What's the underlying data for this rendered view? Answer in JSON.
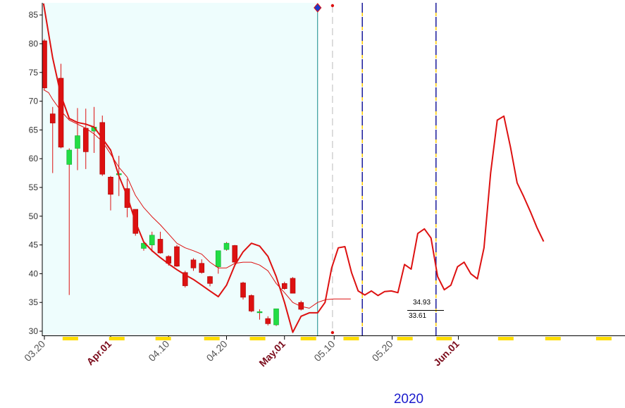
{
  "chart_data": {
    "type": "candlestick",
    "year_label": "2020",
    "ylim": [
      29.3,
      86.8
    ],
    "y_ticks": [
      30,
      35,
      40,
      45,
      50,
      55,
      60,
      65,
      70,
      75,
      80,
      85
    ],
    "x_ticks": [
      {
        "label": "03.20",
        "index": 0,
        "month_start": false
      },
      {
        "label": "Apr.01",
        "index": 8,
        "month_start": true
      },
      {
        "label": "04.10",
        "index": 15,
        "month_start": false
      },
      {
        "label": "04.20",
        "index": 22,
        "month_start": false
      },
      {
        "label": "May.01",
        "index": 29,
        "month_start": true
      },
      {
        "label": "05.10",
        "index": 35,
        "month_start": false
      },
      {
        "label": "05.20",
        "index": 42,
        "month_start": false
      },
      {
        "label": "Jun.01",
        "index": 50,
        "month_start": true
      }
    ],
    "x_count": 51,
    "history_end_index": 33,
    "dashed_marker_index": 34.8,
    "vertical_markers": [
      38.4,
      47.3
    ],
    "price_labels": {
      "upper": "34.93",
      "lower": "33.61"
    },
    "colors": {
      "up": "#22dd44",
      "down": "#dd1111",
      "line": "#dd1111",
      "history_background": "#eefdfd",
      "marker_line": "#1a1a9a",
      "marker_dash": "#ffcc00",
      "history_end_line": "#0f8a8a"
    },
    "candles": [
      {
        "open": 80.5,
        "high": 80.8,
        "low": 72.0,
        "close": 72.3
      },
      {
        "open": 67.8,
        "high": 69.0,
        "low": 57.5,
        "close": 66.2
      },
      {
        "open": 74.0,
        "high": 76.5,
        "low": 61.8,
        "close": 62.0
      },
      {
        "open": 59.0,
        "high": 61.8,
        "low": 36.3,
        "close": 61.5
      },
      {
        "open": 61.8,
        "high": 68.8,
        "low": 58.0,
        "close": 64.0
      },
      {
        "open": 65.3,
        "high": 68.7,
        "low": 58.2,
        "close": 61.2
      },
      {
        "open": 64.8,
        "high": 69.0,
        "low": 61.0,
        "close": 65.5
      },
      {
        "open": 66.3,
        "high": 67.5,
        "low": 57.0,
        "close": 57.3
      },
      {
        "open": 56.8,
        "high": 57.0,
        "low": 51.0,
        "close": 53.8
      },
      {
        "open": 57.2,
        "high": 60.5,
        "low": 53.5,
        "close": 57.4
      },
      {
        "open": 54.8,
        "high": 56.5,
        "low": 49.8,
        "close": 51.5
      },
      {
        "open": 51.2,
        "high": 51.2,
        "low": 46.6,
        "close": 47.0
      },
      {
        "open": 44.4,
        "high": 45.5,
        "low": 44.0,
        "close": 45.3
      },
      {
        "open": 45.0,
        "high": 47.3,
        "low": 43.8,
        "close": 46.7
      },
      {
        "open": 46.0,
        "high": 47.3,
        "low": 43.5,
        "close": 43.6
      },
      {
        "open": 43.0,
        "high": 43.2,
        "low": 41.4,
        "close": 41.8
      },
      {
        "open": 44.7,
        "high": 45.0,
        "low": 41.2,
        "close": 41.3
      },
      {
        "open": 40.2,
        "high": 40.5,
        "low": 37.6,
        "close": 37.9
      },
      {
        "open": 42.4,
        "high": 42.7,
        "low": 40.5,
        "close": 41.0
      },
      {
        "open": 41.8,
        "high": 42.5,
        "low": 40.0,
        "close": 40.2
      },
      {
        "open": 39.5,
        "high": 39.6,
        "low": 37.8,
        "close": 38.3
      },
      {
        "open": 41.2,
        "high": 44.0,
        "low": 40.0,
        "close": 44.0
      },
      {
        "open": 44.2,
        "high": 45.5,
        "low": 44.0,
        "close": 45.3
      },
      {
        "open": 44.9,
        "high": 45.0,
        "low": 41.6,
        "close": 42.0
      },
      {
        "open": 38.4,
        "high": 38.6,
        "low": 35.5,
        "close": 35.9
      },
      {
        "open": 36.2,
        "high": 36.4,
        "low": 33.3,
        "close": 33.5
      },
      {
        "open": 33.2,
        "high": 33.8,
        "low": 32.0,
        "close": 33.4
      },
      {
        "open": 32.2,
        "high": 32.6,
        "low": 31.0,
        "close": 31.3
      },
      {
        "open": 31.1,
        "high": 33.9,
        "low": 30.9,
        "close": 33.9
      },
      {
        "open": 38.3,
        "high": 38.6,
        "low": 37.2,
        "close": 37.4
      },
      {
        "open": 39.2,
        "high": 39.4,
        "low": 36.6,
        "close": 36.6
      },
      {
        "open": 35.0,
        "high": 35.3,
        "low": 33.6,
        "close": 33.8
      }
    ],
    "series": [
      {
        "points": [
          [
            -0.1,
            87.0
          ],
          [
            1,
            77.5
          ],
          [
            2,
            71.0
          ],
          [
            3,
            67.0
          ],
          [
            4,
            66.3
          ],
          [
            5,
            66.0
          ],
          [
            6,
            65.5
          ],
          [
            7,
            63.5
          ],
          [
            8,
            61.5
          ],
          [
            9,
            57.0
          ],
          [
            10,
            53.5
          ],
          [
            11,
            49.0
          ],
          [
            12,
            45.5
          ],
          [
            13,
            44.0
          ],
          [
            14,
            42.8
          ],
          [
            15,
            41.7
          ],
          [
            16,
            40.7
          ],
          [
            17,
            39.8
          ],
          [
            18,
            39.0
          ],
          [
            19,
            38.0
          ],
          [
            20,
            37.0
          ],
          [
            21,
            36.0
          ],
          [
            22,
            38.0
          ],
          [
            23,
            41.5
          ],
          [
            24,
            43.8
          ],
          [
            25,
            45.3
          ],
          [
            26,
            44.8
          ],
          [
            27,
            43.0
          ],
          [
            28,
            39.5
          ],
          [
            29,
            35.0
          ],
          [
            30,
            29.8
          ],
          [
            31,
            32.6
          ],
          [
            32,
            33.2
          ],
          [
            33,
            33.2
          ],
          [
            33.9,
            35.0
          ],
          [
            34.7,
            41.0
          ],
          [
            35.5,
            44.5
          ],
          [
            36.3,
            44.7
          ],
          [
            37.1,
            40.2
          ],
          [
            37.9,
            37.0
          ],
          [
            38.7,
            36.3
          ],
          [
            39.5,
            37.0
          ],
          [
            40.3,
            36.2
          ],
          [
            41.1,
            36.9
          ],
          [
            41.9,
            37.0
          ],
          [
            42.7,
            36.7
          ],
          [
            43.5,
            41.6
          ],
          [
            44.3,
            40.8
          ],
          [
            45.1,
            47.0
          ],
          [
            45.9,
            47.8
          ],
          [
            46.7,
            46.2
          ],
          [
            47.5,
            39.5
          ],
          [
            48.3,
            37.2
          ],
          [
            49.1,
            38.0
          ],
          [
            49.9,
            41.2
          ],
          [
            50.7,
            42.0
          ],
          [
            51.5,
            40.0
          ],
          [
            52.3,
            39.1
          ],
          [
            53.1,
            44.5
          ],
          [
            53.9,
            57.5
          ],
          [
            54.7,
            66.7
          ],
          [
            55.5,
            67.4
          ],
          [
            56.3,
            62.0
          ],
          [
            57.1,
            55.8
          ],
          [
            57.9,
            53.4
          ],
          [
            58.7,
            50.8
          ],
          [
            59.5,
            48.0
          ],
          [
            60.3,
            45.6
          ]
        ]
      },
      {
        "points": [
          [
            -0.1,
            72.0
          ],
          [
            0.5,
            71.5
          ],
          [
            1,
            70.3
          ],
          [
            2,
            68.3
          ],
          [
            3,
            66.7
          ],
          [
            4,
            66.0
          ],
          [
            5,
            65.3
          ],
          [
            6,
            64.3
          ],
          [
            7,
            63.0
          ],
          [
            8,
            60.8
          ],
          [
            9,
            58.5
          ],
          [
            10,
            56.8
          ],
          [
            11,
            53.6
          ],
          [
            12,
            51.5
          ],
          [
            13,
            49.9
          ],
          [
            14,
            48.5
          ],
          [
            15,
            46.9
          ],
          [
            16,
            45.3
          ],
          [
            17,
            44.5
          ],
          [
            18,
            44.0
          ],
          [
            19,
            43.4
          ],
          [
            20,
            42.0
          ],
          [
            21,
            41.0
          ],
          [
            22,
            41.0
          ],
          [
            23,
            41.8
          ],
          [
            24,
            42.0
          ],
          [
            25,
            42.0
          ],
          [
            26,
            41.5
          ],
          [
            27,
            40.5
          ],
          [
            28,
            38.3
          ],
          [
            29,
            36.7
          ],
          [
            30,
            35.0
          ],
          [
            31,
            34.3
          ],
          [
            32,
            34.0
          ],
          [
            33,
            35.0
          ],
          [
            34,
            35.5
          ],
          [
            35,
            35.6
          ],
          [
            36,
            35.6
          ],
          [
            37,
            35.6
          ]
        ]
      }
    ]
  }
}
